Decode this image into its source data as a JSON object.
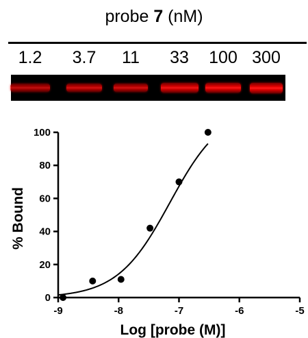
{
  "gel": {
    "title_prefix": "probe ",
    "title_bold": "7",
    "title_suffix": " (nM)",
    "lanes": [
      "1.2",
      "3.7",
      "11",
      "33",
      "100",
      "300"
    ],
    "band_intensity": [
      0.45,
      0.6,
      0.6,
      0.85,
      0.95,
      1.0
    ],
    "band_color": "#ff0000",
    "background_color": "#000000"
  },
  "chart_data": {
    "type": "scatter",
    "xlabel": "Log [probe (M)]",
    "ylabel": "% Bound",
    "xlim": [
      -9,
      -5
    ],
    "ylim": [
      0,
      100
    ],
    "xticks": [
      -9,
      -8,
      -7,
      -6,
      -5
    ],
    "xtick_labels": [
      "-9",
      "-8",
      "-7",
      "-6",
      "-5"
    ],
    "yticks": [
      0,
      20,
      40,
      60,
      80,
      100
    ],
    "ytick_labels": [
      "0",
      "20",
      "40",
      "60",
      "80",
      "100"
    ],
    "grid": false,
    "series": [
      {
        "x": [
          -8.92,
          -8.43,
          -7.96,
          -7.48,
          -7.0,
          -6.52
        ],
        "y": [
          0,
          10,
          11,
          42,
          70,
          100
        ]
      }
    ],
    "fit_curve": {
      "model": "sigmoidal dose-response",
      "bottom": 0,
      "top": 115,
      "log_ec50": -7.15,
      "hill": 1.0,
      "x_range": [
        -9,
        -6.52
      ]
    },
    "marker_color": "#000000",
    "line_color": "#000000"
  }
}
